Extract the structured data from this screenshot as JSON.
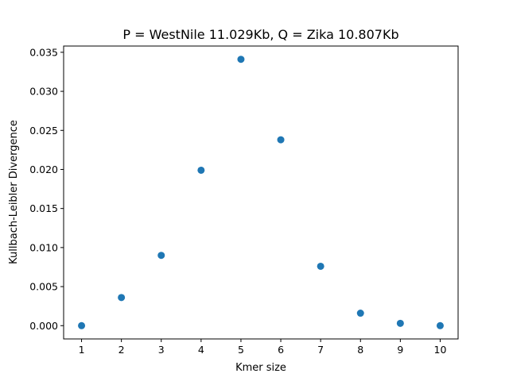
{
  "chart_data": {
    "type": "scatter",
    "title": "P = WestNile 11.029Kb, Q = Zika 10.807Kb",
    "xlabel": "Kmer size",
    "ylabel": "Kullbach-Leibler Divergence",
    "x": [
      1,
      2,
      3,
      4,
      5,
      6,
      7,
      8,
      9,
      10
    ],
    "y": [
      0.0,
      0.0036,
      0.009,
      0.0199,
      0.0341,
      0.0238,
      0.0076,
      0.0016,
      0.0003,
      0.0
    ],
    "xticks": [
      "1",
      "2",
      "3",
      "4",
      "5",
      "6",
      "7",
      "8",
      "9",
      "10"
    ],
    "yticks": [
      "0.000",
      "0.005",
      "0.010",
      "0.015",
      "0.020",
      "0.025",
      "0.030",
      "0.035"
    ],
    "xlim": [
      0.55,
      10.45
    ],
    "ylim": [
      -0.0017,
      0.0358
    ],
    "grid": false,
    "marker_color": "#1f77b4"
  }
}
